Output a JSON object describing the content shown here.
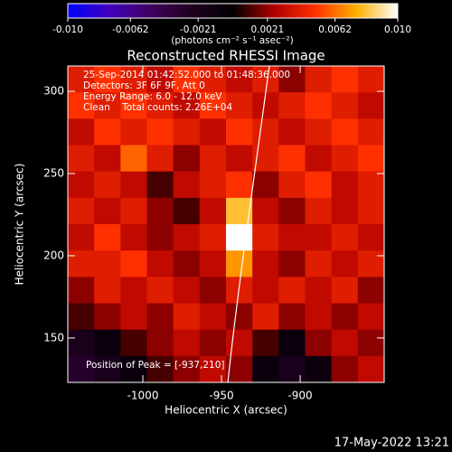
{
  "chart_data": {
    "type": "heatmap",
    "title": "Reconstructed RHESSI Image",
    "x_label": "Heliocentric X (arcsec)",
    "y_label": "Heliocentric Y (arcsec)",
    "colorbar_label": "(photons cm⁻² s⁻¹ asec⁻²)",
    "annotations": [
      "25-Sep-2014 01:42:52.000 to 01:48:36.000",
      "Detectors: 3F 6F 9F, Att 0",
      "Energy Range: 6.0 - 12.0 keV",
      "Clean    Total counts: 2.26E+04"
    ],
    "peak_label": "Position of Peak = [-937,210]",
    "footer": "17-May-2022 13:21",
    "xlim": [
      -1047.7,
      -846.6
    ],
    "ylim": [
      123,
      315.4
    ],
    "xticks": [
      -1000,
      -950,
      -900
    ],
    "yticks": [
      150,
      200,
      250,
      300
    ],
    "clim": [
      -0.01,
      0.01
    ],
    "cticks": [
      {
        "value": -0.01,
        "label": "-0.010"
      },
      {
        "value": -0.0062,
        "label": "-0.0062"
      },
      {
        "value": -0.0021,
        "label": "-0.0021"
      },
      {
        "value": 0.0021,
        "label": "0.0021"
      },
      {
        "value": 0.0062,
        "label": "0.0062"
      },
      {
        "value": 0.01,
        "label": "0.010"
      }
    ],
    "colormap": [
      "#0000ff",
      "#4000c0",
      "#400060",
      "#200020",
      "#000000",
      "#b00000",
      "#ff3000",
      "#ffb000",
      "#ffffff"
    ],
    "z": [
      [
        0.004,
        0.005,
        0.004,
        0.003,
        0.005,
        0.004,
        0.003,
        0.004,
        0.002,
        0.004,
        0.005,
        0.004
      ],
      [
        0.005,
        0.004,
        0.005,
        0.004,
        0.003,
        0.005,
        0.004,
        0.003,
        0.004,
        0.005,
        0.004,
        0.003
      ],
      [
        0.003,
        0.005,
        0.004,
        0.005,
        0.004,
        0.003,
        0.005,
        0.004,
        0.003,
        0.004,
        0.005,
        0.004
      ],
      [
        0.004,
        0.003,
        0.006,
        0.004,
        0.002,
        0.004,
        0.003,
        0.004,
        0.005,
        0.003,
        0.004,
        0.005
      ],
      [
        0.003,
        0.004,
        0.003,
        0.001,
        0.003,
        0.004,
        0.005,
        0.002,
        0.004,
        0.005,
        0.003,
        0.004
      ],
      [
        0.004,
        0.003,
        0.004,
        0.002,
        0.001,
        0.003,
        0.008,
        0.003,
        0.002,
        0.004,
        0.003,
        0.004
      ],
      [
        0.003,
        0.005,
        0.003,
        0.002,
        0.003,
        0.004,
        0.01,
        0.004,
        0.003,
        0.003,
        0.004,
        0.003
      ],
      [
        0.004,
        0.004,
        0.005,
        0.003,
        0.002,
        0.003,
        0.007,
        0.003,
        0.002,
        0.004,
        0.003,
        0.004
      ],
      [
        0.002,
        0.004,
        0.003,
        0.004,
        0.003,
        0.002,
        0.004,
        0.003,
        0.004,
        0.003,
        0.004,
        0.002
      ],
      [
        0.001,
        0.002,
        0.003,
        0.002,
        0.004,
        0.003,
        0.002,
        0.004,
        0.002,
        0.003,
        0.002,
        0.003
      ],
      [
        -0.002,
        -0.001,
        0.001,
        0.002,
        0.003,
        0.002,
        0.003,
        0.001,
        -0.001,
        0.002,
        0.003,
        0.002
      ],
      [
        -0.003,
        -0.002,
        -0.001,
        0.001,
        0.002,
        0.003,
        0.002,
        -0.001,
        -0.002,
        -0.001,
        0.002,
        0.003
      ]
    ]
  }
}
